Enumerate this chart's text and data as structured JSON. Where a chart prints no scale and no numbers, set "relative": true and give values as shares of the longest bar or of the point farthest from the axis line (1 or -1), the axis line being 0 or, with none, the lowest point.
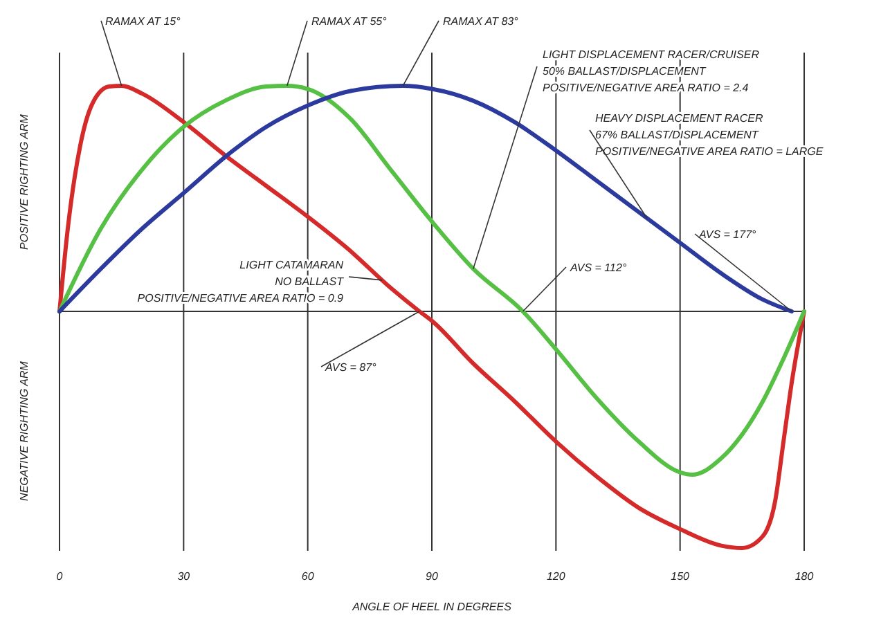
{
  "chart_data": {
    "type": "line",
    "relative": true,
    "xlabel": "ANGLE OF HEEL IN DEGREES",
    "ylabel": "POSITIVE RIGHTING ARM",
    "xlim": [
      0,
      180
    ],
    "xticks": [
      0,
      30,
      60,
      90,
      120,
      150,
      180
    ],
    "grid": "x",
    "line_style": "solid",
    "series": [
      {
        "name": "LIGHT CATAMARAN\nNO BALLAST\nPOSITIVE/NEGATIVE AREA RATIO = 0.9",
        "color": "#d42a2a",
        "x": [
          0,
          2,
          5,
          8,
          12,
          15,
          20,
          30,
          40,
          50,
          60,
          70,
          80,
          87,
          90,
          100,
          110,
          120,
          130,
          140,
          150,
          160,
          165,
          170,
          173,
          175,
          177,
          180
        ],
        "values": [
          0,
          0.35,
          0.7,
          0.88,
          0.95,
          0.953,
          0.92,
          0.8,
          0.66,
          0.53,
          0.4,
          0.26,
          0.1,
          0,
          -0.04,
          -0.22,
          -0.38,
          -0.55,
          -0.7,
          -0.83,
          -0.92,
          -0.99,
          -1,
          -0.95,
          -0.8,
          -0.55,
          -0.3,
          0
        ]
      },
      {
        "name": "LIGHT DISPLACEMENT RACER/CRUISER\n50% BALLAST/DISPLACEMENT\nPOSITIVE/NEGATIVE AREA RATIO = 2.4",
        "color": "#55c043",
        "x": [
          0,
          10,
          20,
          30,
          40,
          50,
          55,
          60,
          70,
          80,
          90,
          100,
          112,
          120,
          130,
          140,
          150,
          153,
          160,
          170,
          175,
          180
        ],
        "values": [
          0,
          0.35,
          0.6,
          0.78,
          0.89,
          0.95,
          0.953,
          0.94,
          0.82,
          0.6,
          0.38,
          0.18,
          0,
          -0.16,
          -0.37,
          -0.55,
          -0.68,
          -0.69,
          -0.62,
          -0.38,
          -0.2,
          0
        ]
      },
      {
        "name": "HEAVY DISPLACEMENT RACER\n67% BALLAST/DISPLACEMENT\nPOSITIVE/NEGATIVE AREA RATIO = LARGE",
        "color": "#2b3a9c",
        "x": [
          0,
          10,
          20,
          30,
          42,
          50,
          60,
          70,
          83,
          90,
          100,
          110,
          120,
          130,
          140,
          150,
          160,
          170,
          177
        ],
        "values": [
          0,
          0.18,
          0.35,
          0.5,
          0.68,
          0.78,
          0.87,
          0.93,
          0.953,
          0.94,
          0.89,
          0.8,
          0.68,
          0.55,
          0.42,
          0.29,
          0.16,
          0.05,
          0
        ]
      }
    ],
    "annotations": [
      {
        "text": "RAMAX AT 15°",
        "x": 15,
        "y": 0.953
      },
      {
        "text": "RAMAX AT 55°",
        "x": 55,
        "y": 0.953
      },
      {
        "text": "RAMAX AT 83°",
        "x": 83,
        "y": 0.953
      },
      {
        "text": "AVS = 87°",
        "x": 87,
        "y": 0
      },
      {
        "text": "AVS = 112°",
        "x": 112,
        "y": 0
      },
      {
        "text": "AVS = 177°",
        "x": 177,
        "y": 0
      },
      "NEGATIVE RIGHTING ARM"
    ]
  }
}
